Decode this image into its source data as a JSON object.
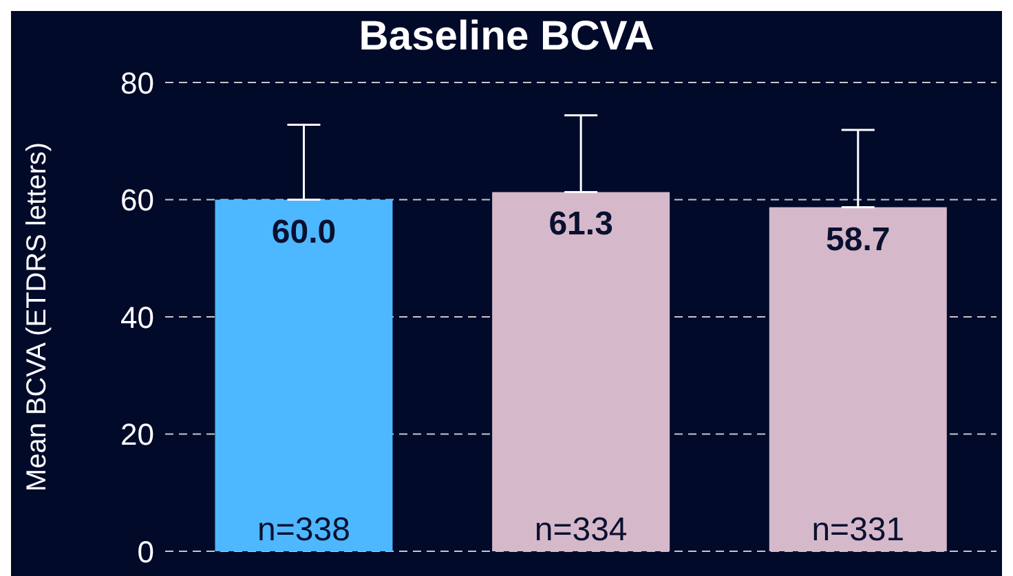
{
  "chart_data": {
    "type": "bar",
    "title": "Baseline  BCVA",
    "ylabel": "Mean BCVA (ETDRS letters)",
    "categories": [
      null,
      null,
      null
    ],
    "values": [
      60.0,
      61.3,
      58.7
    ],
    "colors": [
      "#4db8ff",
      "#d5b9ca",
      "#d5b9ca"
    ],
    "errors": [
      [
        60.0,
        72.8
      ],
      [
        61.3,
        74.4
      ],
      [
        58.7,
        71.9
      ]
    ],
    "value_labels": [
      "60.0",
      "61.3",
      "58.7"
    ],
    "annotations": [
      "n=338",
      "n=334",
      "n=331"
    ],
    "ylim": [
      0,
      80
    ],
    "yticks": [
      0,
      20,
      40,
      60,
      80
    ],
    "grid": "y"
  }
}
